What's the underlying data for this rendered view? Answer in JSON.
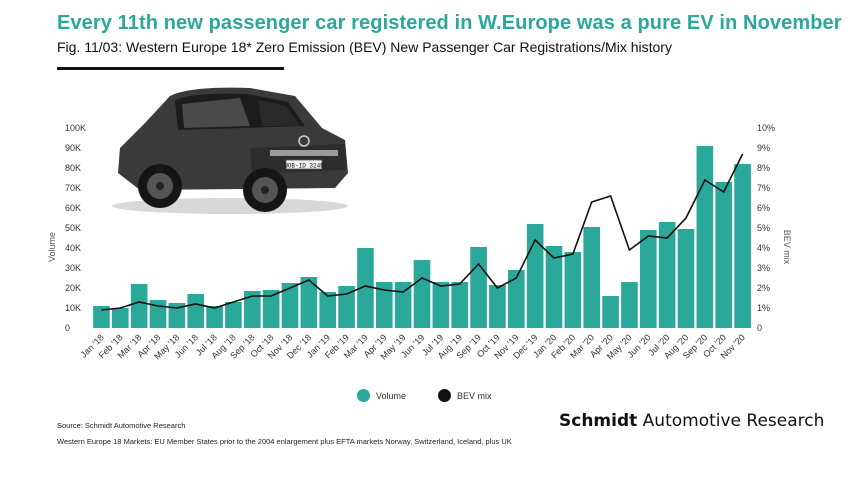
{
  "header": {
    "headline": "Every 11th new passenger car registered in W.Europe was a pure EV in November",
    "subtitle": "Fig. 11/03: Western Europe 18* Zero Emission (BEV) New Passenger Car Registrations/Mix history"
  },
  "car_plate": "WOB-ID 324E",
  "colors": {
    "bar": "#2aa89a",
    "line": "#111111",
    "headline": "#2aa89a"
  },
  "chart_data": {
    "type": "bar",
    "categories": [
      "Jan '18",
      "Feb '18",
      "Mar '18",
      "Apr '18",
      "May '18",
      "Jun '18",
      "Jul '18",
      "Aug '18",
      "Sep '18",
      "Oct '18",
      "Nov '18",
      "Dec '18",
      "Jan '19",
      "Feb '19",
      "Mar '19",
      "Apr '19",
      "May '19",
      "Jun '19",
      "Jul '19",
      "Aug '19",
      "Sep '19",
      "Oct '19",
      "Nov '19",
      "Dec '19",
      "Jan '20",
      "Feb '20",
      "Mar '20",
      "Apr '20",
      "May '20",
      "Jun '20",
      "Jul '20",
      "Aug '20",
      "Sep '20",
      "Oct '20",
      "Nov '20"
    ],
    "series": [
      {
        "name": "Volume",
        "type": "bar",
        "axis": "left",
        "values": [
          11000,
          10000,
          22000,
          14000,
          12500,
          17000,
          11000,
          13000,
          18500,
          19000,
          22500,
          25500,
          18000,
          21000,
          40000,
          23000,
          23000,
          34000,
          23000,
          23000,
          40500,
          21500,
          29000,
          52000,
          41000,
          38000,
          50500,
          16000,
          23000,
          49000,
          53000,
          49500,
          91000,
          73000,
          82000
        ]
      },
      {
        "name": "BEV mix",
        "type": "line",
        "axis": "right",
        "values": [
          0.9,
          1.0,
          1.3,
          1.1,
          1.0,
          1.2,
          1.0,
          1.3,
          1.6,
          1.6,
          2.0,
          2.4,
          1.6,
          1.7,
          2.1,
          1.9,
          1.8,
          2.5,
          2.1,
          2.2,
          3.2,
          2.0,
          2.5,
          4.4,
          3.5,
          3.7,
          6.3,
          6.6,
          3.9,
          4.6,
          4.5,
          5.5,
          7.4,
          6.8,
          8.7
        ]
      }
    ],
    "ylabel": "Volume",
    "y2label": "BEV mix",
    "ylim": [
      0,
      100000
    ],
    "y2lim": [
      0,
      10
    ],
    "yticks": [
      "0",
      "10K",
      "20K",
      "30K",
      "40K",
      "50K",
      "60K",
      "70K",
      "80K",
      "90K",
      "100K"
    ],
    "y2ticks": [
      "0",
      "1%",
      "2%",
      "3%",
      "4%",
      "5%",
      "6%",
      "7%",
      "8%",
      "9%",
      "10%"
    ],
    "grid": false,
    "legend": "bottom"
  },
  "legend": {
    "volume": "Volume",
    "mix": "BEV mix"
  },
  "brand": {
    "bold": "Schmidt",
    "rest": "Automotive Research"
  },
  "source": "Source: Schmidt Automotive Research",
  "footnote": "Western Europe 18 Markets: EU Member States prior to the 2004 enlargement plus EFTA markets Norway, Switzerland, Iceland, plus UK"
}
